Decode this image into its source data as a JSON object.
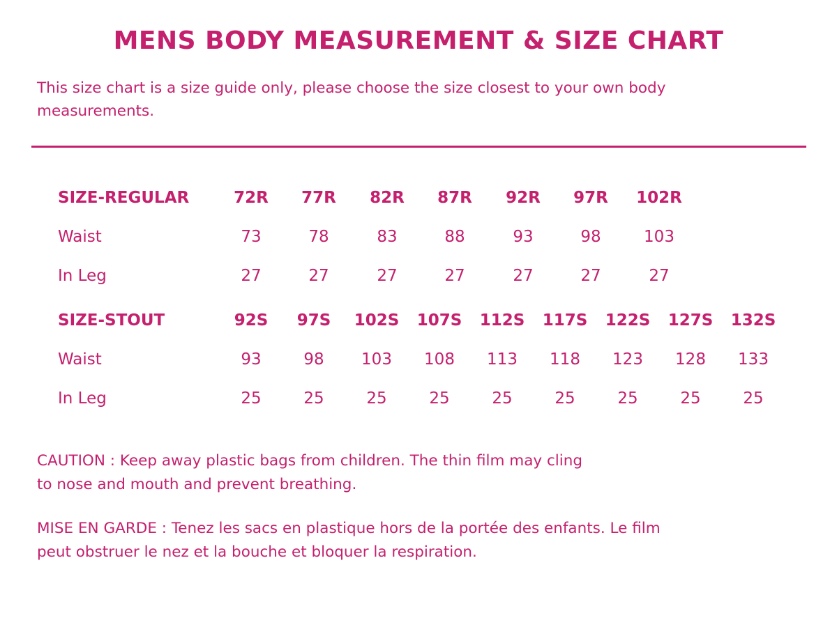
{
  "title": "MENS BODY MEASUREMENT & SIZE CHART",
  "intro": {
    "line1": "This size chart is a size guide only, please choose the size closest to your own body",
    "line2": "measurements."
  },
  "regular": {
    "size_label": "SIZE-REGULAR",
    "waist_label": "Waist",
    "inleg_label": "In Leg",
    "sizes": [
      "72R",
      "77R",
      "82R",
      "87R",
      "92R",
      "97R",
      "102R"
    ],
    "waist": [
      "73",
      "78",
      "83",
      "88",
      "93",
      "98",
      "103"
    ],
    "inleg": [
      "27",
      "27",
      "27",
      "27",
      "27",
      "27",
      "27"
    ]
  },
  "stout": {
    "size_label": "SIZE-STOUT",
    "waist_label": "Waist",
    "inleg_label": "In Leg",
    "sizes": [
      "92S",
      "97S",
      "102S",
      "107S",
      "112S",
      "117S",
      "122S",
      "127S",
      "132S"
    ],
    "waist": [
      "93",
      "98",
      "103",
      "108",
      "113",
      "118",
      "123",
      "128",
      "133"
    ],
    "inleg": [
      "25",
      "25",
      "25",
      "25",
      "25",
      "25",
      "25",
      "25",
      "25"
    ]
  },
  "caution_en": {
    "line1": "CAUTION : Keep away plastic bags from children. The thin film may cling",
    "line2": "to nose and mouth and prevent breathing."
  },
  "caution_fr": {
    "line1": "MISE EN GARDE : Tenez les sacs en plastique hors de la portée des enfants. Le film",
    "line2": "peut obstruer le nez et la bouche et bloquer la respiration."
  },
  "colors": {
    "accent": "#c4206e",
    "background": "#ffffff"
  }
}
